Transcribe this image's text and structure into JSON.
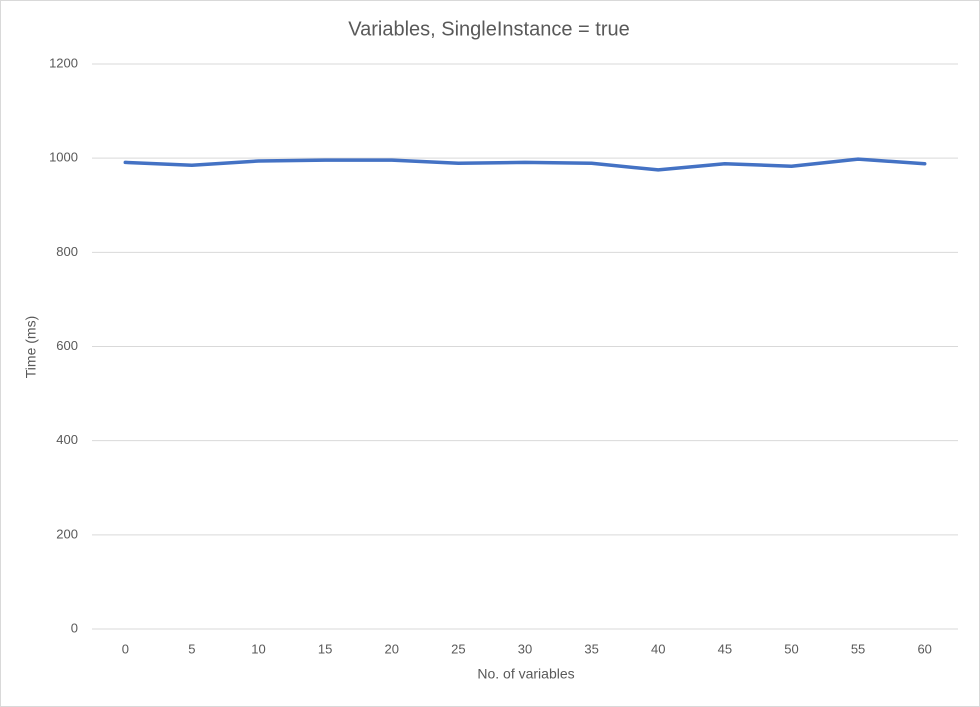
{
  "chart_data": {
    "type": "line",
    "title": "Variables, SingleInstance = true",
    "x_label": "No. of variables",
    "y_label": "Time (ms)",
    "categories": [
      "0",
      "5",
      "10",
      "15",
      "20",
      "25",
      "30",
      "35",
      "40",
      "45",
      "50",
      "55",
      "60"
    ],
    "series": [
      {
        "name": "Time",
        "color": "#4472c4",
        "values": [
          991,
          985,
          994,
          996,
          996,
          989,
          991,
          989,
          975,
          988,
          983,
          998,
          988
        ]
      }
    ],
    "ylim": [
      0,
      1200
    ],
    "yticks": [
      0,
      200,
      400,
      600,
      800,
      1000,
      1200
    ],
    "grid": true
  }
}
